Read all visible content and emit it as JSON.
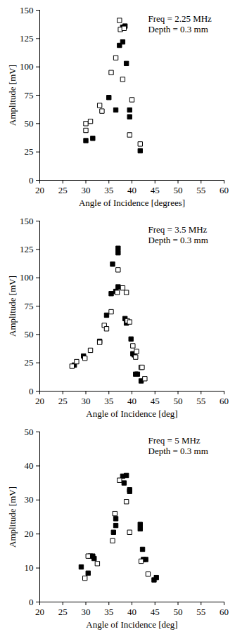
{
  "chart_data": [
    {
      "type": "scatter",
      "annotations": [
        "Freq = 2.25 MHz",
        "Depth = 0.3 mm"
      ],
      "x_label": "Angle of Incidence [degrees]",
      "y_label": "Amplitude [mV]",
      "xlim": [
        20,
        60
      ],
      "xticks": [
        20,
        25,
        30,
        35,
        40,
        45,
        50,
        55,
        60
      ],
      "ylim": [
        0,
        150
      ],
      "yticks": [
        0,
        25,
        50,
        75,
        100,
        125,
        150
      ],
      "grid": false,
      "series": [
        {
          "color": "black",
          "marker": "filled_square",
          "x": [
            30,
            31.5,
            35,
            36.5,
            37.3,
            38,
            38,
            38.5,
            38.8,
            39.5,
            39.5,
            41.8
          ],
          "values": [
            35,
            37,
            73,
            62,
            119,
            122,
            135,
            136,
            103,
            62,
            56,
            26
          ]
        },
        {
          "color": "black",
          "marker": "open_square",
          "x": [
            30,
            30,
            31,
            33,
            33.5,
            35.5,
            36.5,
            37.3,
            37.5,
            38,
            38.3,
            39.5,
            40,
            41.8
          ],
          "values": [
            50,
            44,
            52,
            66,
            61,
            95,
            108,
            141,
            133,
            89,
            134,
            40,
            71,
            32
          ]
        }
      ]
    },
    {
      "type": "scatter",
      "annotations": [
        "Freq = 3.5 MHz",
        "Depth = 0.3 mm"
      ],
      "x_label": "Angle of Incidence [deg]",
      "y_label": "Amplitude [mV]",
      "xlim": [
        20,
        60
      ],
      "xticks": [
        20,
        25,
        30,
        35,
        40,
        45,
        50,
        55,
        60
      ],
      "ylim": [
        0,
        150
      ],
      "yticks": [
        0,
        25,
        50,
        75,
        100,
        125,
        150
      ],
      "grid": false,
      "series": [
        {
          "color": "black",
          "marker": "filled_square",
          "x": [
            27.5,
            29.5,
            33,
            34.5,
            35.5,
            35.8,
            36.5,
            37,
            37,
            37,
            38.5,
            38.8,
            39.8,
            40.2,
            40.5,
            40.8,
            41.2,
            42
          ],
          "values": [
            23,
            31,
            44,
            67,
            86,
            112,
            88,
            126,
            122,
            92,
            64,
            60,
            46,
            33,
            32,
            15,
            15,
            9
          ]
        },
        {
          "color": "black",
          "marker": "open_square",
          "x": [
            27,
            28,
            29.8,
            31,
            33,
            34,
            34.5,
            35.5,
            36.8,
            37,
            38,
            38.8,
            39,
            39.5,
            40.2,
            40.8,
            41,
            42,
            42.2,
            42.8
          ],
          "values": [
            22,
            26,
            29,
            36,
            43,
            58,
            55,
            70,
            87,
            107,
            91,
            87,
            62,
            61,
            40,
            30,
            35,
            21,
            21,
            11
          ]
        }
      ]
    },
    {
      "type": "scatter",
      "annotations": [
        "Freq = 5 MHz",
        "Depth = 0.3 mm"
      ],
      "x_label": "Angle of Incidence [deg]",
      "y_label": "Amplitude [mV]",
      "xlim": [
        20,
        60
      ],
      "xticks": [
        20,
        25,
        30,
        35,
        40,
        45,
        50,
        55,
        60
      ],
      "ylim": [
        0,
        50
      ],
      "yticks": [
        0,
        10,
        20,
        30,
        40,
        50
      ],
      "grid": false,
      "series": [
        {
          "color": "black",
          "marker": "filled_square",
          "x": [
            29,
            30.5,
            31,
            31.5,
            31.8,
            36,
            36.5,
            36.5,
            38,
            38.3,
            38.8,
            39.5,
            39.5,
            41.8,
            41.8,
            42.3,
            42.5,
            43,
            44.8,
            45.3
          ],
          "values": [
            10.3,
            8.5,
            13.5,
            13.5,
            12.8,
            20.5,
            22.5,
            24.5,
            37,
            35,
            37.2,
            33,
            32.5,
            22.8,
            21.5,
            15.5,
            12.5,
            12.5,
            6.5,
            7.2
          ]
        },
        {
          "color": "black",
          "marker": "open_square",
          "x": [
            29.8,
            30.5,
            32.5,
            35.8,
            36.3,
            37.3,
            38.8,
            39.5,
            42,
            43.5
          ],
          "values": [
            7,
            13.5,
            11.3,
            18,
            26,
            35.8,
            29.5,
            20.5,
            12,
            8.2
          ]
        }
      ]
    }
  ]
}
